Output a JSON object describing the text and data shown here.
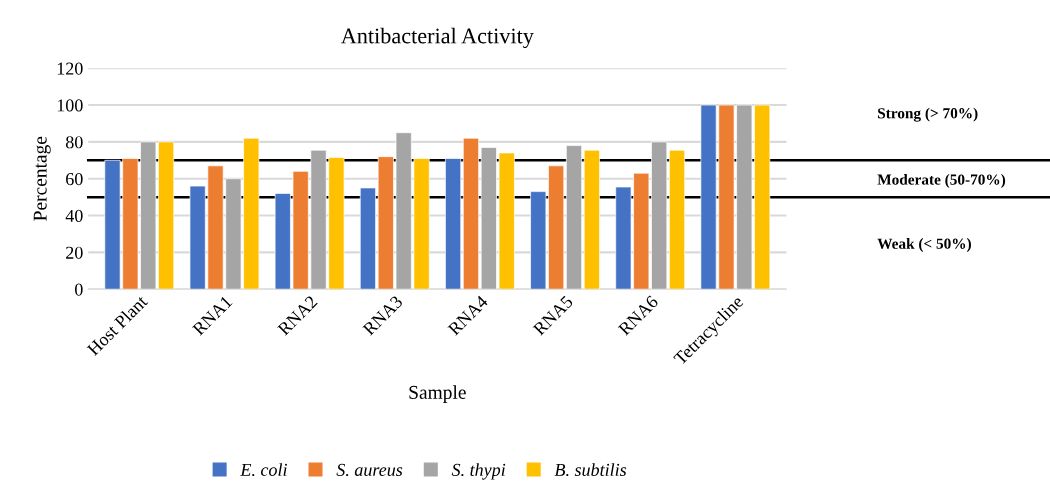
{
  "chart_data": {
    "type": "bar",
    "title": "Antibacterial Activity",
    "xlabel": "Sample",
    "ylabel": "Percentage",
    "categories": [
      "Host Plant",
      "RNA1",
      "RNA2",
      "RNA3",
      "RNA4",
      "RNA5",
      "RNA6",
      "Tetracycline"
    ],
    "series": [
      {
        "name": "E. coli",
        "color": "#4472c4",
        "values": [
          70,
          56,
          52,
          55,
          71,
          53,
          55.5,
          100
        ]
      },
      {
        "name": "S. aureus",
        "color": "#ed7d31",
        "values": [
          71,
          67,
          64,
          72,
          82,
          67,
          63,
          100
        ]
      },
      {
        "name": "S. thypi",
        "color": "#a5a5a5",
        "values": [
          80,
          60,
          75.5,
          85,
          77,
          78,
          80,
          100
        ]
      },
      {
        "name": "B. subtilis",
        "color": "#ffc000",
        "values": [
          80,
          82,
          71.5,
          71,
          74,
          75.5,
          75.5,
          100
        ]
      }
    ],
    "ylim": [
      0,
      120
    ],
    "yticks": [
      0,
      20,
      40,
      60,
      80,
      100,
      120
    ],
    "grid": "y",
    "legend": "bottom",
    "ref_lines": [
      {
        "axis": "y",
        "value": 70,
        "color": "#000000"
      },
      {
        "axis": "y",
        "value": 50,
        "color": "#000000"
      }
    ],
    "annotations": [
      "Strong (> 70%)",
      "Moderate (50-70%)",
      "Weak (< 50%)"
    ]
  }
}
